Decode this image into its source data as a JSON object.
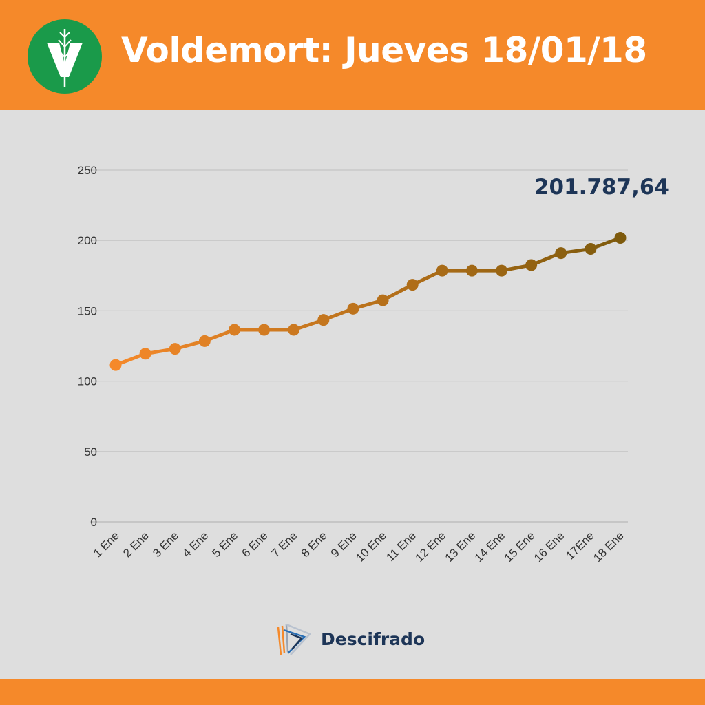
{
  "header": {
    "title": "Voldemort: Jueves 18/01/18",
    "logo_letter": "V",
    "logo_color": "#1a9a4a",
    "background_color": "#f5892a"
  },
  "chart_data": {
    "type": "line",
    "title": "Voldemort: Jueves 18/01/18",
    "xlabel": "",
    "ylabel": "",
    "categories": [
      "1 Ene",
      "2 Ene",
      "3 Ene",
      "4 Ene",
      "5 Ene",
      "6 Ene",
      "7 Ene",
      "8 Ene",
      "9 Ene",
      "10 Ene",
      "11 Ene",
      "12 Ene",
      "13 Ene",
      "14 Ene",
      "15 Ene",
      "16 Ene",
      "17Ene",
      "18 Ene"
    ],
    "values": [
      111.5,
      119.5,
      123,
      128.5,
      136.5,
      136.5,
      136.5,
      143.5,
      151.5,
      157.5,
      168.5,
      178.5,
      178.5,
      178.5,
      182.5,
      191,
      194,
      201.79
    ],
    "ylim": [
      0,
      250
    ],
    "yticks": [
      0,
      50,
      100,
      150,
      200,
      250
    ],
    "grid": true,
    "legend": "none",
    "annotation": "201.787,64",
    "colors": {
      "start": "#f5892a",
      "end": "#7e5a0c",
      "annotation": "#1d3557"
    }
  },
  "brand": {
    "name": "Descifrado"
  }
}
